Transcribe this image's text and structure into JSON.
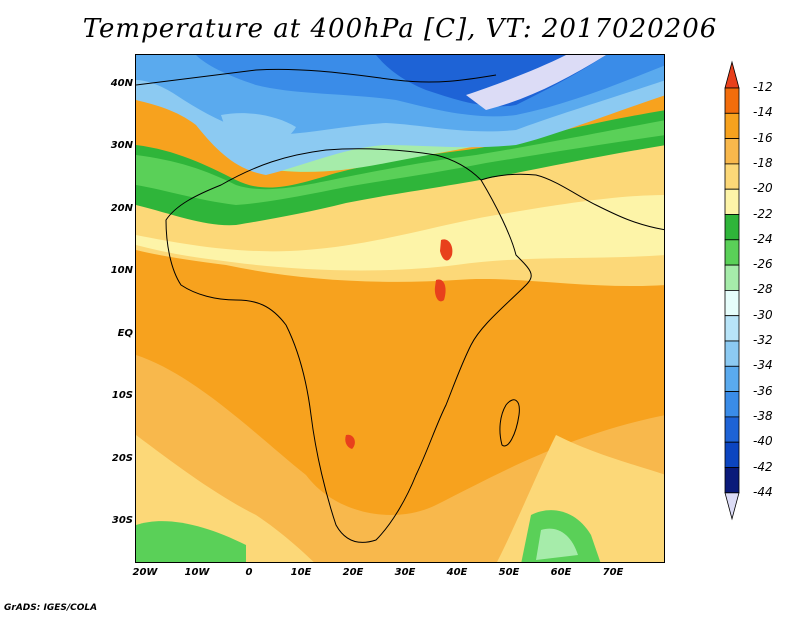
{
  "title": "Temperature at 400hPa [C], VT: 2017020206",
  "latitude_labels": [
    "40N",
    "30N",
    "20N",
    "10N",
    "EQ",
    "10S",
    "20S",
    "30S"
  ],
  "longitude_labels": [
    "20W",
    "10W",
    "0",
    "10E",
    "20E",
    "30E",
    "40E",
    "50E",
    "60E",
    "70E"
  ],
  "colorbar": {
    "levels": [
      "-12",
      "-14",
      "-16",
      "-18",
      "-20",
      "-22",
      "-24",
      "-26",
      "-28",
      "-30",
      "-32",
      "-34",
      "-36",
      "-38",
      "-40",
      "-42",
      "-44"
    ],
    "colors": [
      "#e8401c",
      "#f26d0c",
      "#f7a21e",
      "#f8b84c",
      "#fcd878",
      "#fdf4a8",
      "#2fb53a",
      "#5ad058",
      "#a6ecaa",
      "#e6fdfb",
      "#b8e4f8",
      "#8ccaf2",
      "#5aaaee",
      "#3a8ce8",
      "#1e63d6",
      "#0c45c0",
      "#0a1a7a",
      "#dcdcf6"
    ]
  },
  "footer": "GrADS: IGES/COLA"
}
